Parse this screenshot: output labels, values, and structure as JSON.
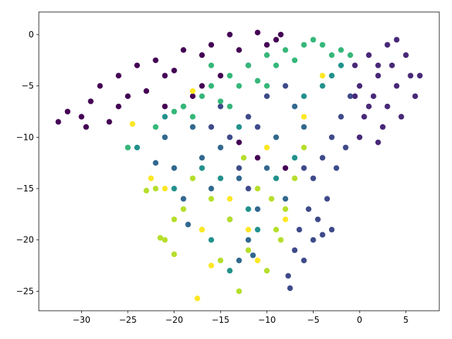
{
  "chart_data": {
    "type": "scatter",
    "xlim": [
      -34.6,
      8.6
    ],
    "ylim": [
      -26.9,
      2.2
    ],
    "xticks": [
      {
        "value": -30,
        "label": "−30"
      },
      {
        "value": -25,
        "label": "−25"
      },
      {
        "value": -20,
        "label": "−20"
      },
      {
        "value": -15,
        "label": "−15"
      },
      {
        "value": -10,
        "label": "−10"
      },
      {
        "value": -5,
        "label": "−5"
      },
      0,
      5
    ],
    "yticks": [
      0,
      {
        "value": -5,
        "label": "−5"
      },
      {
        "value": -10,
        "label": "−10"
      },
      {
        "value": -15,
        "label": "−15"
      },
      {
        "value": -20,
        "label": "−20"
      },
      {
        "value": -25,
        "label": "−25"
      }
    ],
    "series": [
      {
        "color": "#440154",
        "x": [
          -32.5,
          -31.5,
          -30,
          -29,
          -28,
          -27,
          -26,
          -25,
          -24,
          -23,
          -22,
          -21,
          -20,
          -19,
          -18,
          -17,
          -16,
          -15,
          -14,
          -13,
          -12,
          -11,
          -10,
          -9,
          -8.5,
          -17,
          -21,
          -26,
          -29.5,
          -13,
          -11,
          -8
        ],
        "y": [
          -8.5,
          -7.5,
          -8,
          -6.5,
          -5,
          -8.5,
          -4,
          -6,
          -3,
          -5.5,
          -2.5,
          -7,
          -3.5,
          -1.5,
          -6,
          -2,
          -1,
          -4,
          0,
          -1.5,
          -3,
          0.2,
          -1,
          -0.5,
          0,
          -5,
          -4,
          -7,
          -9,
          -10.5,
          -12,
          -13
        ]
      },
      {
        "color": "#482878",
        "x": [
          -0.5,
          0,
          0.5,
          1,
          1.5,
          2,
          2.5,
          3,
          3,
          3.5,
          4,
          4.5,
          5,
          5.5,
          6,
          0,
          2,
          1,
          4,
          6.5,
          -0.5,
          2
        ],
        "y": [
          -3,
          -5,
          -8,
          -2,
          -6,
          -4,
          -9,
          -1,
          -7,
          -3,
          -5,
          -8,
          -2,
          -4,
          -6,
          -10,
          -10.5,
          -7,
          -0.5,
          -4,
          -6,
          -3
        ]
      },
      {
        "color": "#3e4a89",
        "x": [
          -7.5,
          -7.7,
          -7,
          -6.5,
          -6,
          -5.5,
          -5,
          -5,
          -4.5,
          -4,
          -3.5,
          -3,
          -3,
          -2.5,
          -2,
          -1.5,
          -1,
          -4,
          -6,
          -12,
          -14,
          -13,
          -11,
          -15,
          -16,
          -10,
          -12,
          -8
        ],
        "y": [
          -24.7,
          -23.5,
          -21,
          -19,
          -22,
          -17,
          -20,
          -14,
          -18,
          -12,
          -16,
          -10,
          -19,
          -13,
          -8,
          -11,
          -6,
          -19.5,
          -13,
          -8,
          -10,
          -13,
          -9,
          -7,
          -9,
          -6,
          -15,
          -5
        ]
      },
      {
        "color": "#31688e",
        "x": [
          -22,
          -21,
          -20,
          -19,
          -18,
          -17,
          -16,
          -15,
          -14,
          -13,
          -12,
          -11,
          -10,
          -9,
          -8,
          -7,
          -6,
          -18.5,
          -13,
          -11.5
        ],
        "y": [
          -12.5,
          -10,
          -13,
          -16,
          -9,
          -12,
          -15,
          -11,
          -18,
          -14,
          -20,
          -17,
          -13,
          -10,
          -16,
          -7,
          -9,
          -18.5,
          -22,
          -21.5
        ]
      },
      {
        "color": "#21918c",
        "x": [
          -24,
          -21,
          -19,
          -17,
          -15,
          -13,
          -11,
          -9,
          -7,
          -6,
          -4,
          -3,
          -2,
          -14,
          -16,
          -12,
          -20
        ],
        "y": [
          -11,
          -8,
          -7,
          -13,
          -14,
          -9,
          -19,
          -14,
          -12,
          -6,
          -5,
          -4,
          -3,
          -23,
          -20,
          -17,
          -15
        ]
      },
      {
        "color": "#35b779",
        "x": [
          -20,
          -19,
          -18,
          -17,
          -16,
          -15,
          -14,
          -13,
          -12,
          -11,
          -10,
          -9,
          -8,
          -7,
          -6,
          -5,
          -4,
          -3,
          -2,
          -10,
          -14,
          -16,
          -25,
          -22,
          -1
        ],
        "y": [
          -7.5,
          -7,
          -8,
          -6,
          -5,
          -6.5,
          -4,
          -5,
          -3,
          -4.5,
          -2,
          -3,
          -1.5,
          -2.5,
          -1,
          -0.5,
          -1,
          -2,
          -1.5,
          -5,
          -7,
          -3,
          -11,
          -9,
          -2
        ]
      },
      {
        "color": "#b5de2b",
        "x": [
          -22,
          -21,
          -20,
          -19,
          -18,
          -17,
          -16,
          -15,
          -14,
          -13,
          -12,
          -11,
          -10,
          -9,
          -8,
          -7,
          -9.5,
          -8.5,
          -12.5,
          -20,
          -23,
          -21.5,
          -6
        ],
        "y": [
          -15,
          -20,
          -18,
          -17,
          -14,
          -19,
          -16,
          -22,
          -18,
          -25,
          -21,
          -15,
          -23,
          -19,
          -17,
          -14,
          -16,
          -20,
          -12,
          -21.4,
          -15.2,
          -19.8,
          -11
        ]
      },
      {
        "color": "#fde725",
        "x": [
          -24.5,
          -22.5,
          -21,
          -17.5,
          -17,
          -16,
          -14,
          -12,
          -10,
          -8,
          -6,
          -4,
          -18,
          -11
        ],
        "y": [
          -8.7,
          -14,
          -15,
          -25.7,
          -19,
          -22.5,
          -16,
          -19,
          -11,
          -18,
          -8,
          -4,
          -5.5,
          -22
        ]
      }
    ]
  }
}
